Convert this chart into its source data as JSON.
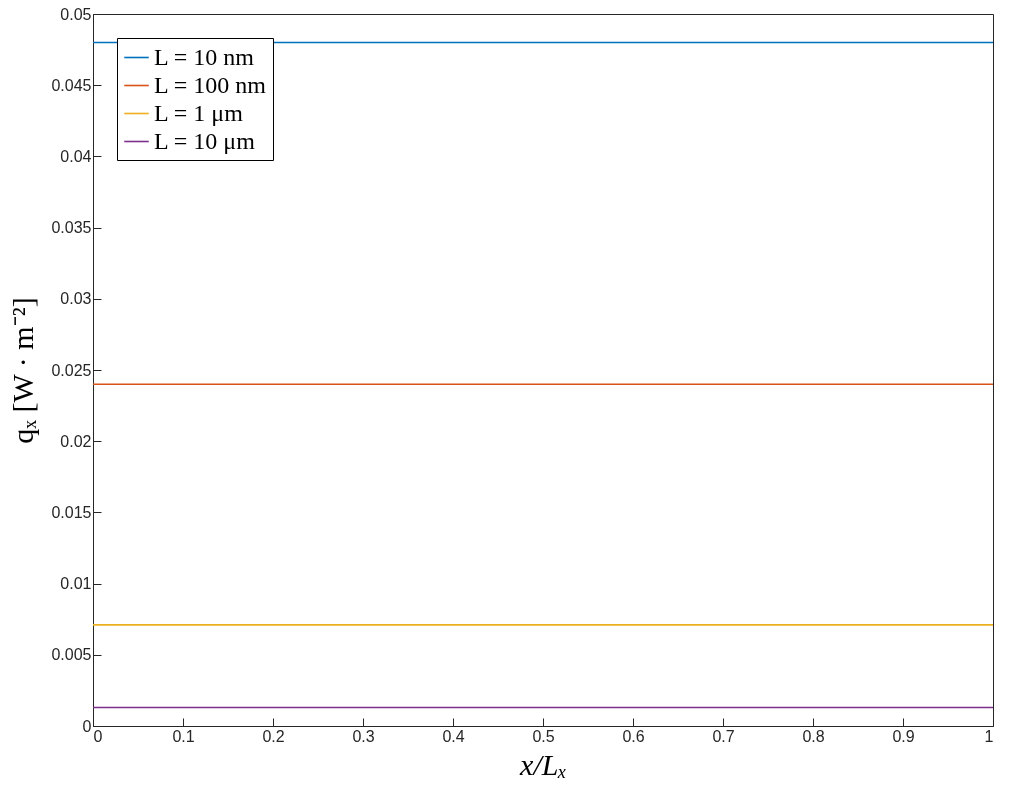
{
  "chart_data": {
    "type": "line",
    "xlabel": "x/Lₓ",
    "ylabel": "qₓ [W · m⁻²]",
    "x": [
      0,
      1
    ],
    "series": [
      {
        "name": "L = 10 nm",
        "color": "#0072bd",
        "values": [
          0.048,
          0.048
        ]
      },
      {
        "name": "L = 100 nm",
        "color": "#d95319",
        "values": [
          0.024,
          0.024
        ]
      },
      {
        "name": "L = 1 μm",
        "color": "#edb120",
        "values": [
          0.0071,
          0.0071
        ]
      },
      {
        "name": "L = 10 μm",
        "color": "#7e2f8e",
        "values": [
          0.0013,
          0.0013
        ]
      }
    ],
    "xlim": [
      0,
      1
    ],
    "xticks": [
      0,
      0.1,
      0.2,
      0.3,
      0.4,
      0.5,
      0.6,
      0.7,
      0.8,
      0.9,
      1
    ],
    "ylim": [
      0,
      0.05
    ],
    "yticks": [
      0,
      0.005,
      0.01,
      0.015,
      0.02,
      0.025,
      0.03,
      0.035,
      0.04,
      0.045,
      0.05
    ],
    "grid": false,
    "legend": "top left",
    "marker": "none",
    "line_style": "solid"
  }
}
